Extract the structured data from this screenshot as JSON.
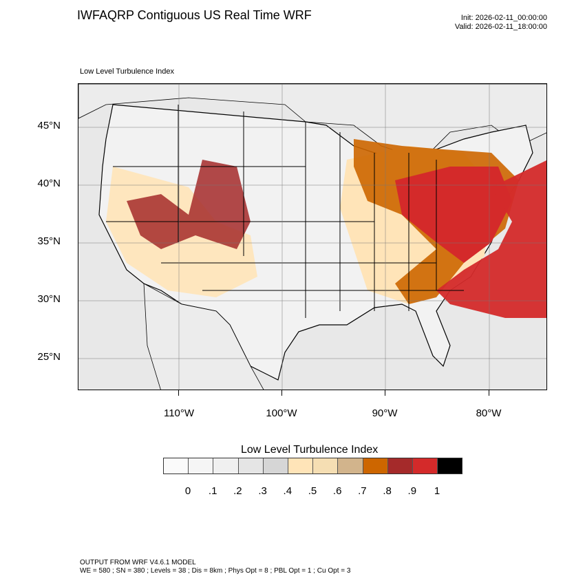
{
  "header": {
    "title": "IWFAQRP Contiguous US Real Time WRF",
    "init": "Init: 2026-02-11_00:00:00",
    "valid": "Valid: 2026-02-11_18:00:00"
  },
  "map": {
    "subtitle": "Low Level Turbulence Index",
    "lat_labels": [
      "45°N",
      "40°N",
      "35°N",
      "30°N",
      "25°N"
    ],
    "lon_labels": [
      "110°W",
      "100°W",
      "90°W",
      "80°W"
    ]
  },
  "colorbar": {
    "title": "Low Level Turbulence Index",
    "colors": [
      "#fafafa",
      "#f5f5f5",
      "#f0f0f0",
      "#e5e5e5",
      "#d6d6d6",
      "#ffe4b8",
      "#f5deb3",
      "#d2b48c",
      "#cd6600",
      "#a52a2a",
      "#d42a2a",
      "#000000"
    ],
    "labels": [
      "0",
      ".1",
      ".2",
      ".3",
      ".4",
      ".5",
      ".6",
      ".7",
      ".8",
      ".9",
      "1"
    ]
  },
  "footer": {
    "line1": "OUTPUT FROM WRF V4.6.1 MODEL",
    "line2": "WE = 580 ; SN = 380 ; Levels = 38 ; Dis = 8km ; Phys Opt = 8 ; PBL Opt = 1 ; Cu Opt = 3"
  }
}
